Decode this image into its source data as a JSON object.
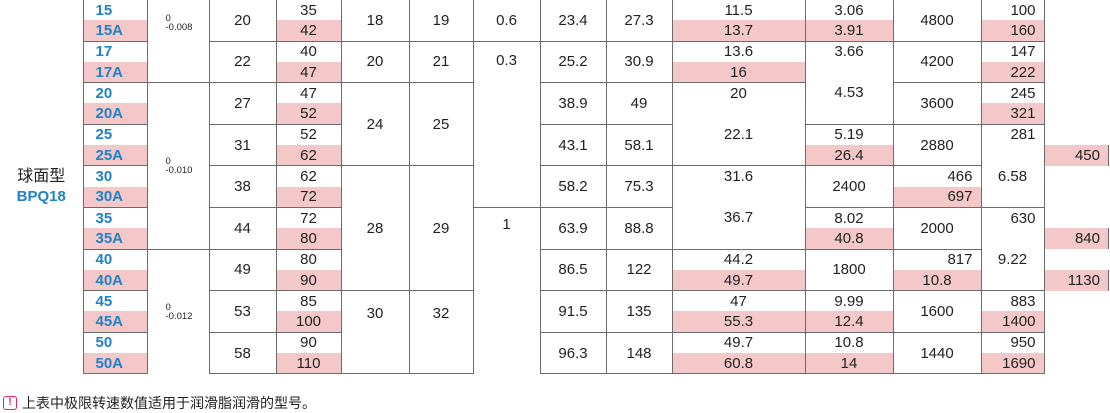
{
  "category": {
    "name": "球面型",
    "code": "BPQ18"
  },
  "tolerances": [
    {
      "upper": "0",
      "lower": "-0.008"
    },
    {
      "upper": "0",
      "lower": "-0.010"
    },
    {
      "upper": "0",
      "lower": "-0.012"
    }
  ],
  "codes": [
    "15",
    "15A",
    "17",
    "17A",
    "20",
    "20A",
    "25",
    "25A",
    "30",
    "30A",
    "35",
    "35A",
    "40",
    "40A",
    "45",
    "45A",
    "50",
    "50A"
  ],
  "row_values": [
    {
      "c2": "35",
      "c11": "100"
    },
    {
      "c2": "42",
      "c11": "160"
    },
    {
      "c2": "40",
      "c11": "147"
    },
    {
      "c2": "47",
      "c11": "222"
    },
    {
      "c2": "47",
      "c11": "245"
    },
    {
      "c2": "52",
      "c11": "321"
    },
    {
      "c2": "52",
      "c11": "281"
    },
    {
      "c2": "62",
      "c11": "450"
    },
    {
      "c2": "62",
      "c11": "466"
    },
    {
      "c2": "72",
      "c11": "697"
    },
    {
      "c2": "72",
      "c11": "630"
    },
    {
      "c2": "80",
      "c11": "840"
    },
    {
      "c2": "80",
      "c11": "817"
    },
    {
      "c2": "90",
      "c11": "1130"
    },
    {
      "c2": "85",
      "c11": "883"
    },
    {
      "c2": "100",
      "c11": "1400"
    },
    {
      "c2": "90",
      "c11": "950"
    },
    {
      "c2": "110",
      "c11": "1690"
    }
  ],
  "c1": [
    "20",
    "22",
    "27",
    "31",
    "38",
    "44",
    "49",
    "53",
    "58"
  ],
  "c3": [
    "18",
    "20",
    "24",
    "28",
    "30"
  ],
  "c4": [
    "19",
    "21",
    "25",
    "29",
    "32"
  ],
  "c5": [
    "0.6",
    "0.3",
    "1",
    "0.6"
  ],
  "c6": [
    "23.4",
    "25.2",
    "38.9",
    "43.1",
    "58.2",
    "63.9",
    "86.5",
    "91.5",
    "96.3"
  ],
  "c7": [
    "27.3",
    "30.9",
    "49",
    "58.1",
    "75.3",
    "88.8",
    "122",
    "135",
    "148"
  ],
  "c8": [
    "11.5",
    "13.7",
    "13.6",
    "16",
    "20",
    "22.1",
    "26.4",
    "31.6",
    "36.7",
    "40.8",
    "44.2",
    "49.7",
    "47",
    "55.3",
    "49.7",
    "60.8"
  ],
  "c9": [
    "3.06",
    "3.91",
    "3.66",
    "4.53",
    "5.19",
    "6.58",
    "8.02",
    "9.22",
    "10.8",
    "9.99",
    "12.4",
    "10.8",
    "14"
  ],
  "c10": [
    "4800",
    "4200",
    "3600",
    "2880",
    "2400",
    "2000",
    "1800",
    "1600",
    "1440"
  ],
  "note": {
    "icon": "exclamation-icon",
    "text": "上表中极限转速数值适用于润滑脂润滑的型号。",
    "icon_color": "#e0245e"
  },
  "colors": {
    "stripe": "#f4c7c9",
    "code": "#1f82c5",
    "rule": "#6b6b6b"
  }
}
